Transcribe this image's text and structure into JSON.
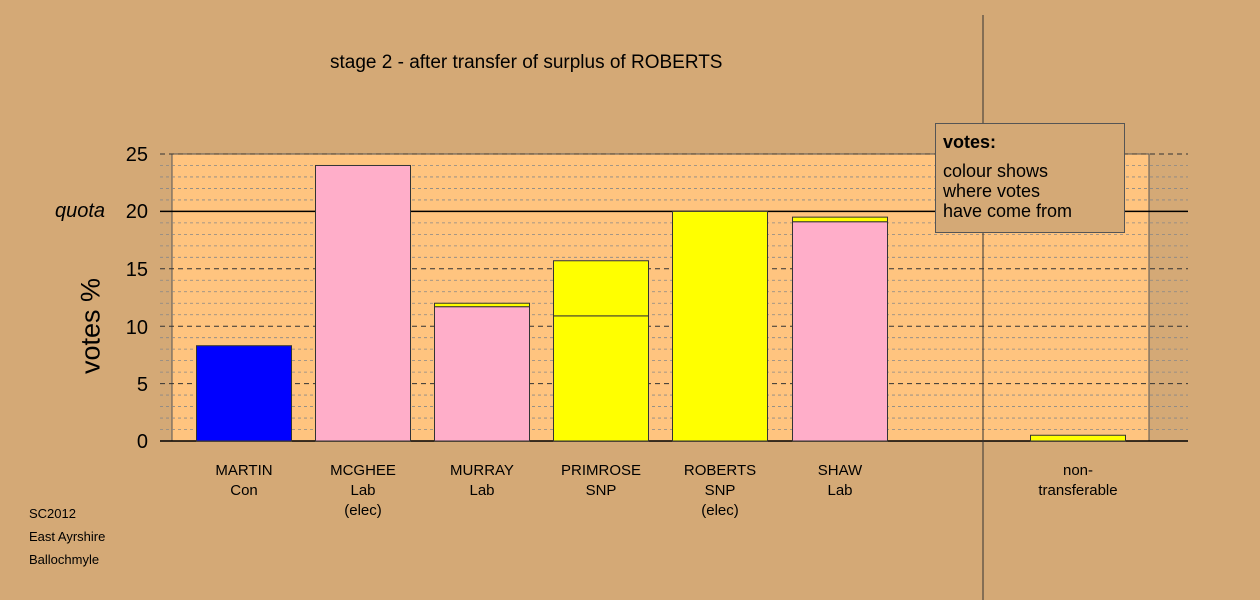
{
  "chart_data": {
    "type": "bar",
    "title": "stage 2 - after transfer of surplus of ROBERTS",
    "ylabel": "votes %",
    "ylim": [
      0,
      25
    ],
    "yticks": [
      0,
      5,
      10,
      15,
      20,
      25
    ],
    "quota": 20,
    "quota_label": "quota",
    "grid": "dashed horizontal",
    "categories": [
      {
        "lines": [
          "MARTIN",
          "Con"
        ],
        "segments": [
          {
            "value": 8.3,
            "color": "#0000ff"
          }
        ]
      },
      {
        "lines": [
          "MCGHEE",
          "Lab",
          "(elec)"
        ],
        "segments": [
          {
            "value": 24.0,
            "color": "#ffaec9"
          }
        ]
      },
      {
        "lines": [
          "MURRAY",
          "Lab"
        ],
        "segments": [
          {
            "value": 11.7,
            "color": "#ffaec9"
          },
          {
            "value": 0.3,
            "color": "#ffff00"
          }
        ]
      },
      {
        "lines": [
          "PRIMROSE",
          "SNP"
        ],
        "segments": [
          {
            "value": 10.9,
            "color": "#ffff00"
          },
          {
            "value": 4.8,
            "color": "#ffff00"
          }
        ]
      },
      {
        "lines": [
          "ROBERTS",
          "SNP",
          "(elec)"
        ],
        "segments": [
          {
            "value": 20.0,
            "color": "#ffff00"
          }
        ]
      },
      {
        "lines": [
          "SHAW",
          "Lab"
        ],
        "segments": [
          {
            "value": 19.1,
            "color": "#ffaec9"
          },
          {
            "value": 0.4,
            "color": "#ffff00"
          }
        ]
      },
      {
        "lines": [
          "non-",
          "transferable"
        ],
        "segments": [
          {
            "value": 0.5,
            "color": "#ffff00"
          }
        ]
      }
    ],
    "legend": {
      "title": "votes:",
      "body": [
        "colour shows",
        "where votes",
        "have come from"
      ],
      "placement": "top-right"
    }
  },
  "source": [
    "SC2012",
    "East Ayrshire",
    "Ballochmyle"
  ],
  "colors": {
    "background": "#d4a976",
    "plot_background": "#ffc47f",
    "con": "#0000ff",
    "lab": "#ffaec9",
    "snp": "#ffff00"
  }
}
